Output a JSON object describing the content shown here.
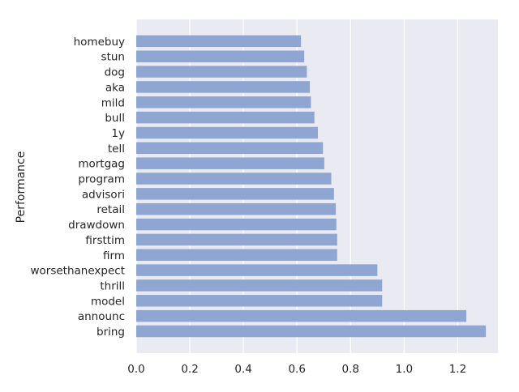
{
  "chart_data": {
    "type": "bar",
    "orientation": "horizontal",
    "ylabel": "Performance",
    "xlabel": "",
    "xlim": [
      0,
      1.35
    ],
    "xticks": [
      0.0,
      0.2,
      0.4,
      0.6,
      0.8,
      1.0,
      1.2
    ],
    "xtick_labels": [
      "0.0",
      "0.2",
      "0.4",
      "0.6",
      "0.8",
      "1.0",
      "1.2"
    ],
    "grid": true,
    "bar_color": "#8fa6d3",
    "background_color": "#eaeaf2",
    "grid_color": "#ffffff",
    "categories": [
      "bring",
      "announc",
      "model",
      "thrill",
      "worsethanexpect",
      "firm",
      "firsttim",
      "drawdown",
      "retail",
      "advisori",
      "program",
      "mortgag",
      "tell",
      "1y",
      "bull",
      "mild",
      "aka",
      "dog",
      "stun",
      "homebuy"
    ],
    "values": [
      1.305,
      1.232,
      0.918,
      0.918,
      0.9,
      0.75,
      0.75,
      0.747,
      0.745,
      0.738,
      0.728,
      0.702,
      0.697,
      0.678,
      0.665,
      0.652,
      0.648,
      0.637,
      0.627,
      0.615
    ]
  }
}
